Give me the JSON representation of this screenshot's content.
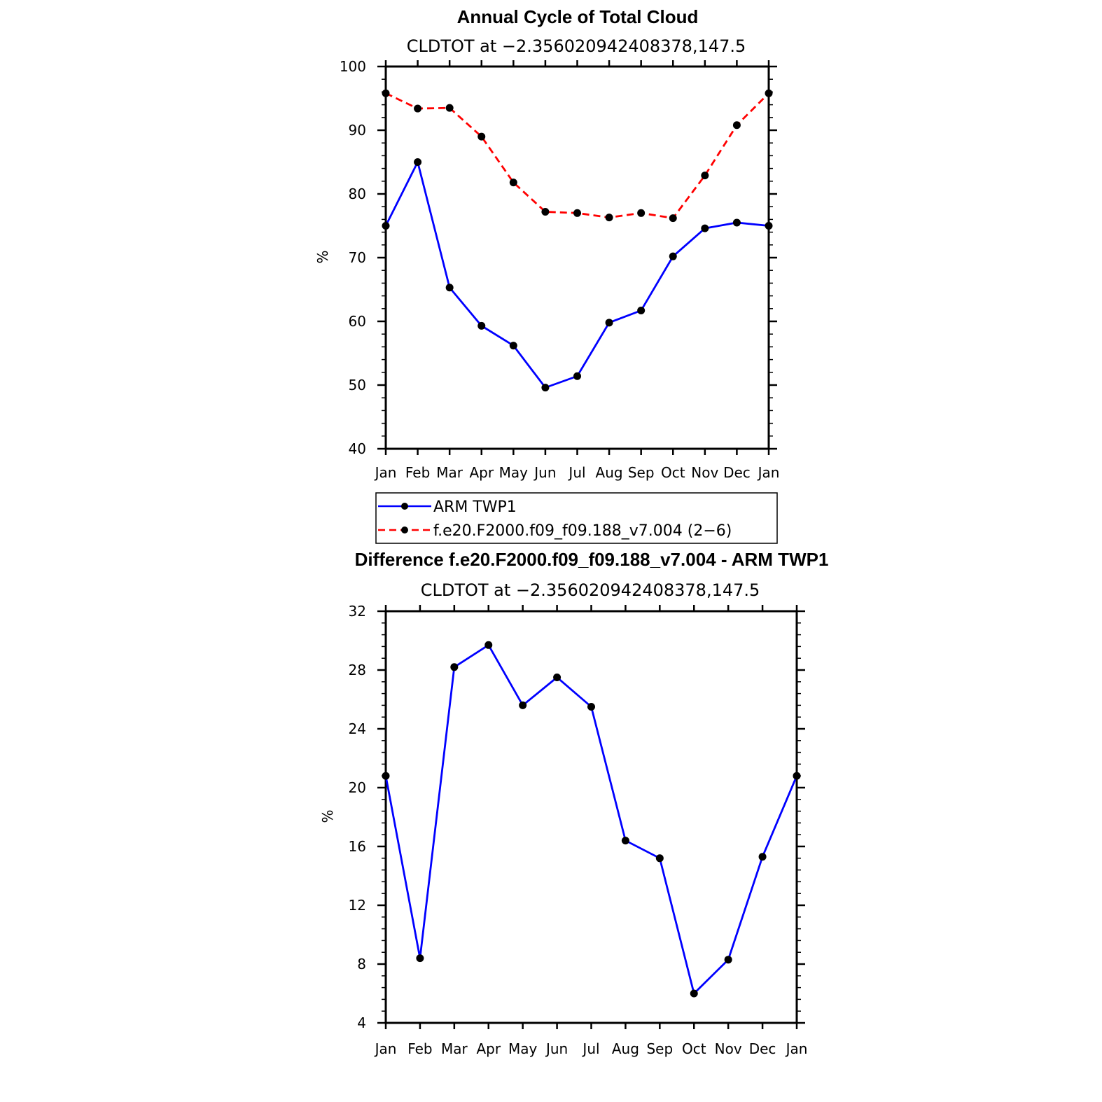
{
  "chart_data": [
    {
      "type": "line",
      "title": "Annual Cycle of Total Cloud",
      "subtitle": "CLDTOT at −2.356020942408378,147.5",
      "xlabel": "",
      "ylabel": "%",
      "categories": [
        "Jan",
        "Feb",
        "Mar",
        "Apr",
        "May",
        "Jun",
        "Jul",
        "Aug",
        "Sep",
        "Oct",
        "Nov",
        "Dec",
        "Jan"
      ],
      "ylim": [
        40,
        100
      ],
      "yticks": [
        40,
        50,
        60,
        70,
        80,
        90,
        100
      ],
      "series": [
        {
          "name": "ARM TWP1",
          "color": "#0000ff",
          "dash": "solid",
          "values": [
            75.0,
            85.0,
            65.3,
            59.3,
            56.2,
            49.6,
            51.4,
            59.8,
            61.7,
            70.2,
            74.6,
            75.5,
            75.0
          ]
        },
        {
          "name": "f.e20.F2000.f09_f09.188_v7.004 (2−6)",
          "color": "#ff0000",
          "dash": "dashed",
          "values": [
            95.8,
            93.4,
            93.5,
            89.0,
            81.8,
            77.2,
            77.0,
            76.3,
            77.0,
            76.2,
            82.9,
            90.8,
            95.8
          ]
        }
      ],
      "legend": "below"
    },
    {
      "type": "line",
      "title": "Difference f.e20.F2000.f09_f09.188_v7.004 - ARM TWP1",
      "subtitle": "CLDTOT at −2.356020942408378,147.5",
      "xlabel": "",
      "ylabel": "%",
      "categories": [
        "Jan",
        "Feb",
        "Mar",
        "Apr",
        "May",
        "Jun",
        "Jul",
        "Aug",
        "Sep",
        "Oct",
        "Nov",
        "Dec",
        "Jan"
      ],
      "ylim": [
        4,
        32
      ],
      "yticks": [
        4,
        8,
        12,
        16,
        20,
        24,
        28,
        32
      ],
      "series": [
        {
          "name": "Difference",
          "color": "#0000ff",
          "dash": "solid",
          "values": [
            20.8,
            8.4,
            28.2,
            29.7,
            25.6,
            27.5,
            25.5,
            16.4,
            15.2,
            6.0,
            8.3,
            15.3,
            20.8
          ]
        }
      ]
    }
  ]
}
